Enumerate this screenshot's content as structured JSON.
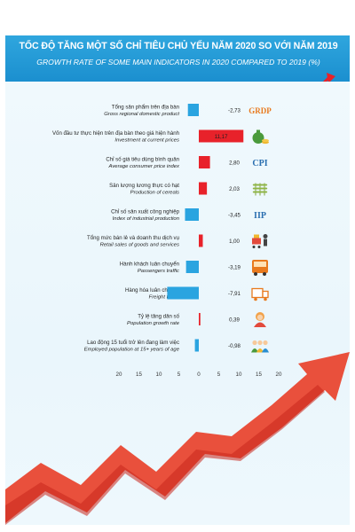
{
  "header": {
    "title_vi": "TỐC ĐỘ TĂNG MỘT SỐ CHỈ TIÊU CHỦ YẾU NĂM 2020 SO VỚI NĂM 2019",
    "title_en": "GROWTH RATE OF SOME MAIN INDICATORS IN 2020 COMPARED TO 2019 (%)"
  },
  "colors": {
    "header_bg": "#1b8fcf",
    "negative_bar": "#2aa4e0",
    "positive_bar": "#e8222a",
    "background": "#eaf6fc"
  },
  "chart_data": {
    "type": "bar",
    "orientation": "horizontal",
    "title": "TỐC ĐỘ TĂNG MỘT SỐ CHỈ TIÊU CHỦ YẾU NĂM 2020 SO VỚI NĂM 2019",
    "subtitle": "GROWTH RATE OF SOME MAIN INDICATORS IN 2020 COMPARED TO 2019 (%)",
    "xlim": [
      -20,
      20
    ],
    "x_ticks": [
      20,
      15,
      10,
      5,
      0,
      5,
      10,
      15,
      20
    ],
    "grid": false,
    "categories": [
      {
        "vi": "Tổng sản phẩm trên địa bàn",
        "en": "Gross regional domestic product",
        "value": -2.73,
        "label": "-2,73",
        "icon": "grdp-icon"
      },
      {
        "vi": "Vốn đầu tư thực hiện trên địa bàn theo giá hiện hành",
        "en": "Investment at current prices",
        "value": 11.17,
        "label": "11,17",
        "icon": "money-bag-icon"
      },
      {
        "vi": "Chỉ số giá tiêu dùng bình quân",
        "en": "Average consumer price index",
        "value": 2.8,
        "label": "2,80",
        "icon": "cpi-icon"
      },
      {
        "vi": "Sản lượng lương thực có hạt",
        "en": "Production of cereals",
        "value": 2.03,
        "label": "2,03",
        "icon": "grain-icon"
      },
      {
        "vi": "Chỉ số sản xuất công nghiệp",
        "en": "Index of industrial production",
        "value": -3.45,
        "label": "-3,45",
        "icon": "iip-icon"
      },
      {
        "vi": "Tổng mức bán lẻ và doanh thu dịch vụ",
        "en": "Retail sales of goods and services",
        "value": 1.0,
        "label": "1,00",
        "icon": "shopping-cart-icon"
      },
      {
        "vi": "Hành khách luân chuyển",
        "en": "Passengers traffic",
        "value": -3.19,
        "label": "-3,19",
        "icon": "bus-icon"
      },
      {
        "vi": "Hàng hóa luân chuyển",
        "en": "Freight traffic",
        "value": -7.91,
        "label": "-7,91",
        "icon": "truck-icon"
      },
      {
        "vi": "Tỷ lệ tăng dân số",
        "en": "Population growth rate",
        "value": 0.39,
        "label": "0,39",
        "icon": "person-icon"
      },
      {
        "vi": "Lao động 15 tuổi trở lên đang làm việc",
        "en": "Employed population at 15+ years of age",
        "value": -0.98,
        "label": "-0,98",
        "icon": "people-group-icon"
      }
    ]
  },
  "icon_texts": {
    "grdp": "GRDP",
    "cpi": "CPI",
    "iip": "IIP"
  }
}
